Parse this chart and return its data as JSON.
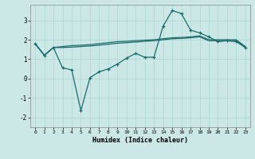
{
  "xlabel": "Humidex (Indice chaleur)",
  "bg_color": "#cce8e6",
  "line_color": "#1a6b6b",
  "grid_color": "#add8d4",
  "x": [
    0,
    1,
    2,
    3,
    4,
    5,
    6,
    7,
    8,
    9,
    10,
    11,
    12,
    13,
    14,
    15,
    16,
    17,
    18,
    19,
    20,
    21,
    22,
    23
  ],
  "curve_top": [
    1.8,
    1.2,
    1.6,
    1.65,
    1.7,
    1.72,
    1.75,
    1.8,
    1.85,
    1.9,
    1.92,
    1.95,
    1.98,
    2.0,
    2.05,
    2.1,
    2.12,
    2.15,
    2.2,
    2.0,
    2.0,
    2.0,
    2.0,
    1.65
  ],
  "curve_mid": [
    1.8,
    1.2,
    1.6,
    1.6,
    1.62,
    1.65,
    1.68,
    1.72,
    1.77,
    1.82,
    1.85,
    1.88,
    1.92,
    1.95,
    2.0,
    2.05,
    2.07,
    2.1,
    2.15,
    1.95,
    1.95,
    1.95,
    1.95,
    1.6
  ],
  "curve_data": [
    1.8,
    1.2,
    1.6,
    0.55,
    0.45,
    -1.65,
    0.05,
    0.35,
    0.5,
    0.75,
    1.05,
    1.3,
    1.1,
    1.1,
    2.7,
    3.5,
    3.35,
    2.5,
    2.35,
    2.15,
    1.9,
    1.95,
    1.9,
    1.6
  ],
  "xlim": [
    -0.5,
    23.5
  ],
  "ylim": [
    -2.5,
    3.8
  ],
  "yticks": [
    -2,
    -1,
    0,
    1,
    2,
    3
  ],
  "xticks": [
    0,
    1,
    2,
    3,
    4,
    5,
    6,
    7,
    8,
    9,
    10,
    11,
    12,
    13,
    14,
    15,
    16,
    17,
    18,
    19,
    20,
    21,
    22,
    23
  ],
  "figsize": [
    3.2,
    2.0
  ],
  "dpi": 100
}
